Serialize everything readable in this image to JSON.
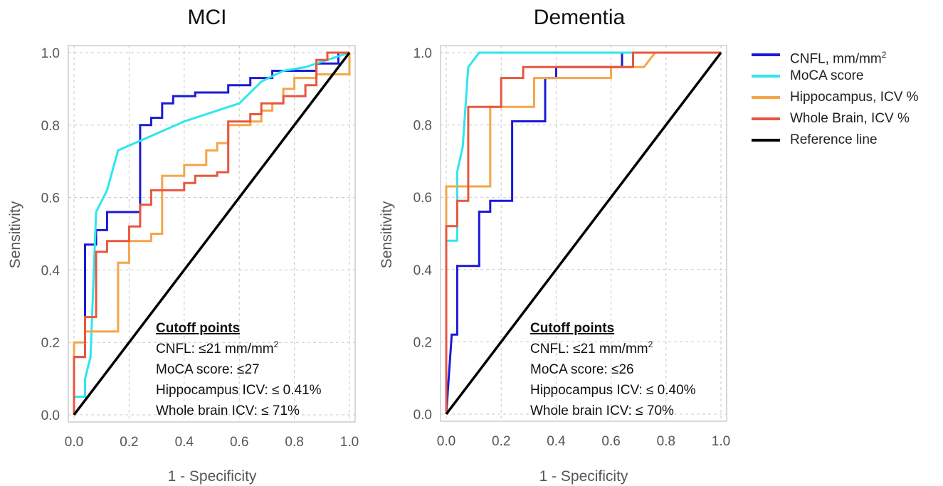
{
  "legend": [
    {
      "label": "CNFL, mm/mm",
      "superscript": "2",
      "color": "#1a1ad6"
    },
    {
      "label": "MoCA score",
      "color": "#2ee6ee"
    },
    {
      "label": "Hippocampus, ICV %",
      "color": "#f5a54a"
    },
    {
      "label": "Whole Brain, ICV %",
      "color": "#e8573f"
    },
    {
      "label": "Reference line",
      "color": "#000000"
    }
  ],
  "chart_data": [
    {
      "type": "line",
      "title": "MCI",
      "xlabel": "1 - Specificity",
      "ylabel": "Sensitivity",
      "xlim": [
        0,
        1
      ],
      "ylim": [
        0,
        1
      ],
      "xticks": [
        "0.0",
        "0.2",
        "0.4",
        "0.6",
        "0.8",
        "1.0"
      ],
      "yticks": [
        "0.0",
        "0.2",
        "0.4",
        "0.6",
        "0.8",
        "1.0"
      ],
      "grid": true,
      "annotation": {
        "heading": "Cutoff points",
        "lines": [
          {
            "text": "CNFL: ≤21 mm/mm",
            "superscript": "2"
          },
          {
            "text": "MoCA score: ≤27"
          },
          {
            "text": "Hippocampus ICV: ≤ 0.41%"
          },
          {
            "text": "Whole brain ICV: ≤ 71%"
          }
        ]
      },
      "series": [
        {
          "name": "CNFL, mm/mm²",
          "color": "#1a1ad6",
          "points": [
            [
              0,
              0
            ],
            [
              0,
              0.16
            ],
            [
              0.04,
              0.16
            ],
            [
              0.04,
              0.47
            ],
            [
              0.08,
              0.47
            ],
            [
              0.08,
              0.51
            ],
            [
              0.12,
              0.51
            ],
            [
              0.12,
              0.56
            ],
            [
              0.24,
              0.56
            ],
            [
              0.24,
              0.8
            ],
            [
              0.28,
              0.8
            ],
            [
              0.28,
              0.82
            ],
            [
              0.32,
              0.82
            ],
            [
              0.32,
              0.86
            ],
            [
              0.36,
              0.86
            ],
            [
              0.36,
              0.88
            ],
            [
              0.44,
              0.88
            ],
            [
              0.44,
              0.89
            ],
            [
              0.56,
              0.89
            ],
            [
              0.56,
              0.91
            ],
            [
              0.64,
              0.91
            ],
            [
              0.64,
              0.93
            ],
            [
              0.72,
              0.93
            ],
            [
              0.72,
              0.95
            ],
            [
              0.88,
              0.95
            ],
            [
              0.88,
              0.97
            ],
            [
              0.96,
              0.97
            ],
            [
              0.96,
              1.0
            ],
            [
              1.0,
              1.0
            ]
          ]
        },
        {
          "name": "MoCA score",
          "color": "#2ee6ee",
          "points": [
            [
              0,
              0
            ],
            [
              0,
              0.05
            ],
            [
              0.04,
              0.05
            ],
            [
              0.04,
              0.1
            ],
            [
              0.06,
              0.16
            ],
            [
              0.08,
              0.56
            ],
            [
              0.12,
              0.62
            ],
            [
              0.16,
              0.73
            ],
            [
              0.28,
              0.77
            ],
            [
              0.4,
              0.81
            ],
            [
              0.52,
              0.84
            ],
            [
              0.6,
              0.86
            ],
            [
              0.68,
              0.92
            ],
            [
              0.76,
              0.95
            ],
            [
              0.84,
              0.96
            ],
            [
              0.92,
              0.98
            ],
            [
              1.0,
              1.0
            ]
          ]
        },
        {
          "name": "Hippocampus, ICV %",
          "color": "#f5a54a",
          "points": [
            [
              0,
              0
            ],
            [
              0,
              0.2
            ],
            [
              0.04,
              0.2
            ],
            [
              0.04,
              0.23
            ],
            [
              0.16,
              0.23
            ],
            [
              0.16,
              0.42
            ],
            [
              0.2,
              0.42
            ],
            [
              0.2,
              0.48
            ],
            [
              0.28,
              0.48
            ],
            [
              0.28,
              0.5
            ],
            [
              0.32,
              0.5
            ],
            [
              0.32,
              0.66
            ],
            [
              0.4,
              0.66
            ],
            [
              0.4,
              0.69
            ],
            [
              0.48,
              0.69
            ],
            [
              0.48,
              0.73
            ],
            [
              0.52,
              0.73
            ],
            [
              0.52,
              0.75
            ],
            [
              0.56,
              0.75
            ],
            [
              0.56,
              0.8
            ],
            [
              0.64,
              0.8
            ],
            [
              0.64,
              0.81
            ],
            [
              0.68,
              0.81
            ],
            [
              0.68,
              0.84
            ],
            [
              0.72,
              0.84
            ],
            [
              0.72,
              0.86
            ],
            [
              0.76,
              0.86
            ],
            [
              0.76,
              0.9
            ],
            [
              0.8,
              0.9
            ],
            [
              0.8,
              0.93
            ],
            [
              0.88,
              0.93
            ],
            [
              0.88,
              0.94
            ],
            [
              1.0,
              0.94
            ],
            [
              1.0,
              1.0
            ]
          ]
        },
        {
          "name": "Whole Brain, ICV %",
          "color": "#e8573f",
          "points": [
            [
              0,
              0
            ],
            [
              0,
              0.16
            ],
            [
              0.04,
              0.16
            ],
            [
              0.04,
              0.27
            ],
            [
              0.08,
              0.27
            ],
            [
              0.08,
              0.45
            ],
            [
              0.12,
              0.45
            ],
            [
              0.12,
              0.48
            ],
            [
              0.2,
              0.48
            ],
            [
              0.2,
              0.52
            ],
            [
              0.24,
              0.52
            ],
            [
              0.24,
              0.58
            ],
            [
              0.28,
              0.58
            ],
            [
              0.28,
              0.62
            ],
            [
              0.4,
              0.62
            ],
            [
              0.4,
              0.64
            ],
            [
              0.44,
              0.64
            ],
            [
              0.44,
              0.66
            ],
            [
              0.52,
              0.66
            ],
            [
              0.52,
              0.67
            ],
            [
              0.56,
              0.67
            ],
            [
              0.56,
              0.72
            ],
            [
              0.56,
              0.81
            ],
            [
              0.64,
              0.81
            ],
            [
              0.64,
              0.83
            ],
            [
              0.68,
              0.83
            ],
            [
              0.68,
              0.86
            ],
            [
              0.76,
              0.86
            ],
            [
              0.76,
              0.88
            ],
            [
              0.84,
              0.88
            ],
            [
              0.84,
              0.91
            ],
            [
              0.88,
              0.91
            ],
            [
              0.88,
              0.98
            ],
            [
              0.92,
              0.98
            ],
            [
              0.92,
              1.0
            ],
            [
              1.0,
              1.0
            ]
          ]
        },
        {
          "name": "Reference line",
          "color": "#000000",
          "points": [
            [
              0,
              0
            ],
            [
              1,
              1
            ]
          ]
        }
      ]
    },
    {
      "type": "line",
      "title": "Dementia",
      "xlabel": "1 - Specificity",
      "ylabel": "Sensitivity",
      "xlim": [
        0,
        1
      ],
      "ylim": [
        0,
        1
      ],
      "xticks": [
        "0.0",
        "0.2",
        "0.4",
        "0.6",
        "0.8",
        "1.0"
      ],
      "yticks": [
        "0.0",
        "0.2",
        "0.4",
        "0.6",
        "0.8",
        "1.0"
      ],
      "grid": true,
      "annotation": {
        "heading": "Cutoff points",
        "lines": [
          {
            "text": "CNFL: ≤21 mm/mm",
            "superscript": "2"
          },
          {
            "text": "MoCA score: ≤26"
          },
          {
            "text": "Hippocampus ICV: ≤ 0.40%"
          },
          {
            "text": "Whole brain ICV: ≤ 70%"
          }
        ]
      },
      "series": [
        {
          "name": "CNFL, mm/mm²",
          "color": "#1a1ad6",
          "points": [
            [
              0,
              0
            ],
            [
              0.02,
              0.22
            ],
            [
              0.04,
              0.22
            ],
            [
              0.04,
              0.41
            ],
            [
              0.08,
              0.41
            ],
            [
              0.08,
              0.41
            ],
            [
              0.12,
              0.41
            ],
            [
              0.12,
              0.56
            ],
            [
              0.16,
              0.56
            ],
            [
              0.16,
              0.59
            ],
            [
              0.24,
              0.59
            ],
            [
              0.24,
              0.81
            ],
            [
              0.36,
              0.81
            ],
            [
              0.36,
              0.93
            ],
            [
              0.4,
              0.93
            ],
            [
              0.4,
              0.96
            ],
            [
              0.64,
              0.96
            ],
            [
              0.64,
              1.0
            ],
            [
              1.0,
              1.0
            ]
          ]
        },
        {
          "name": "MoCA score",
          "color": "#2ee6ee",
          "points": [
            [
              0,
              0
            ],
            [
              0,
              0.48
            ],
            [
              0.04,
              0.48
            ],
            [
              0.04,
              0.67
            ],
            [
              0.06,
              0.74
            ],
            [
              0.08,
              0.96
            ],
            [
              0.12,
              1.0
            ],
            [
              1.0,
              1.0
            ]
          ]
        },
        {
          "name": "Hippocampus, ICV %",
          "color": "#f5a54a",
          "points": [
            [
              0,
              0
            ],
            [
              0,
              0.63
            ],
            [
              0.16,
              0.63
            ],
            [
              0.16,
              0.85
            ],
            [
              0.32,
              0.85
            ],
            [
              0.32,
              0.93
            ],
            [
              0.6,
              0.93
            ],
            [
              0.6,
              0.96
            ],
            [
              0.72,
              0.96
            ],
            [
              0.76,
              1.0
            ],
            [
              1.0,
              1.0
            ]
          ]
        },
        {
          "name": "Whole Brain, ICV %",
          "color": "#e8573f",
          "points": [
            [
              0,
              0
            ],
            [
              0,
              0.52
            ],
            [
              0.04,
              0.52
            ],
            [
              0.04,
              0.59
            ],
            [
              0.08,
              0.59
            ],
            [
              0.08,
              0.85
            ],
            [
              0.2,
              0.85
            ],
            [
              0.2,
              0.93
            ],
            [
              0.28,
              0.93
            ],
            [
              0.28,
              0.96
            ],
            [
              0.68,
              0.96
            ],
            [
              0.68,
              1.0
            ],
            [
              1.0,
              1.0
            ]
          ]
        },
        {
          "name": "Reference line",
          "color": "#000000",
          "points": [
            [
              0,
              0
            ],
            [
              1,
              1
            ]
          ]
        }
      ]
    }
  ]
}
